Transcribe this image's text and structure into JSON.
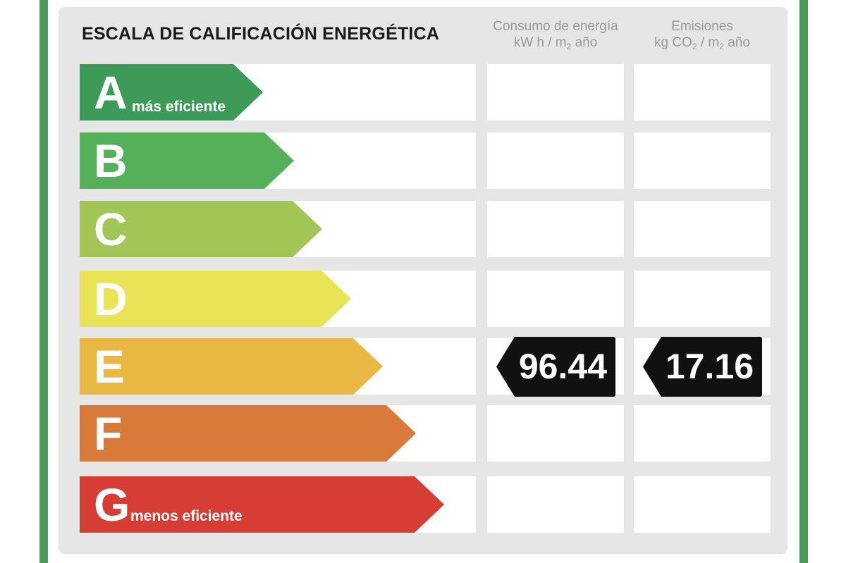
{
  "title": "ESCALA DE CALIFICACIÓN ENERGÉTICA",
  "columns": {
    "energy": {
      "line1": "Consumo de energía",
      "unit_a": "kW h / m",
      "unit_sub": "2",
      "unit_b": " año"
    },
    "emissions": {
      "line1": "Emisiones",
      "unit_a": "kg CO",
      "unit_sub1": "2",
      "unit_mid": " / m",
      "unit_sub2": "2",
      "unit_b": " año"
    }
  },
  "ratings": [
    {
      "letter": "A",
      "label": "más eficiente",
      "color": "#3e9a57"
    },
    {
      "letter": "B",
      "label": "",
      "color": "#55b05a"
    },
    {
      "letter": "C",
      "label": "",
      "color": "#a1c655"
    },
    {
      "letter": "D",
      "label": "",
      "color": "#e9e456"
    },
    {
      "letter": "E",
      "label": "",
      "color": "#e8b843"
    },
    {
      "letter": "F",
      "label": "",
      "color": "#d87a3a"
    },
    {
      "letter": "G",
      "label": "menos eficiente",
      "color": "#d63e35"
    }
  ],
  "result": {
    "rating": "E",
    "energy_value": "96.44",
    "emissions_value": "17.16"
  },
  "colors": {
    "frame": "#4a9a5e",
    "panel": "#e6e6e6",
    "badge": "#111111"
  }
}
